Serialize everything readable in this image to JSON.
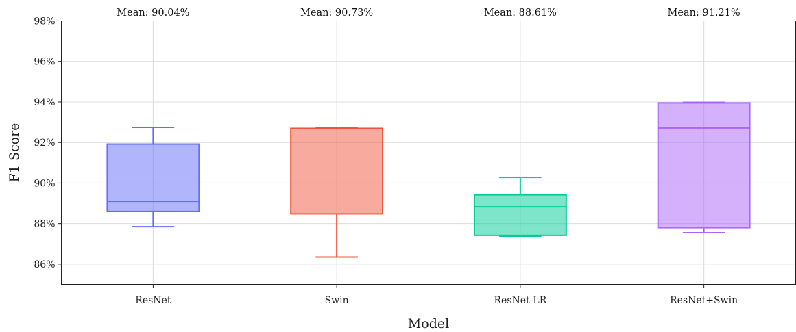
{
  "chart_data": {
    "type": "box",
    "xlabel": "Model",
    "ylabel": "F1 Score",
    "ylim": [
      85,
      98
    ],
    "yticks": [
      86,
      88,
      90,
      92,
      94,
      96,
      98
    ],
    "ytick_suffix": "%",
    "grid": true,
    "categories": [
      "ResNet",
      "Swin",
      "ResNet-LR",
      "ResNet+Swin"
    ],
    "boxes": [
      {
        "category": "ResNet",
        "min": 87.85,
        "q1": 88.6,
        "median": 89.1,
        "q3": 91.92,
        "max": 92.75,
        "mean_label": "Mean: 90.04%",
        "color": "#636efa"
      },
      {
        "category": "Swin",
        "min": 86.35,
        "q1": 88.48,
        "median": 92.7,
        "q3": 92.7,
        "max": 92.72,
        "mean_label": "Mean: 90.73%",
        "color": "#ef553b"
      },
      {
        "category": "ResNet-LR",
        "min": 87.38,
        "q1": 87.42,
        "median": 88.83,
        "q3": 89.42,
        "max": 90.28,
        "mean_label": "Mean: 88.61%",
        "color": "#00cc96"
      },
      {
        "category": "ResNet+Swin",
        "min": 87.55,
        "q1": 87.8,
        "median": 92.72,
        "q3": 93.95,
        "max": 93.98,
        "mean_label": "Mean: 91.21%",
        "color": "#ab63fa"
      }
    ]
  }
}
